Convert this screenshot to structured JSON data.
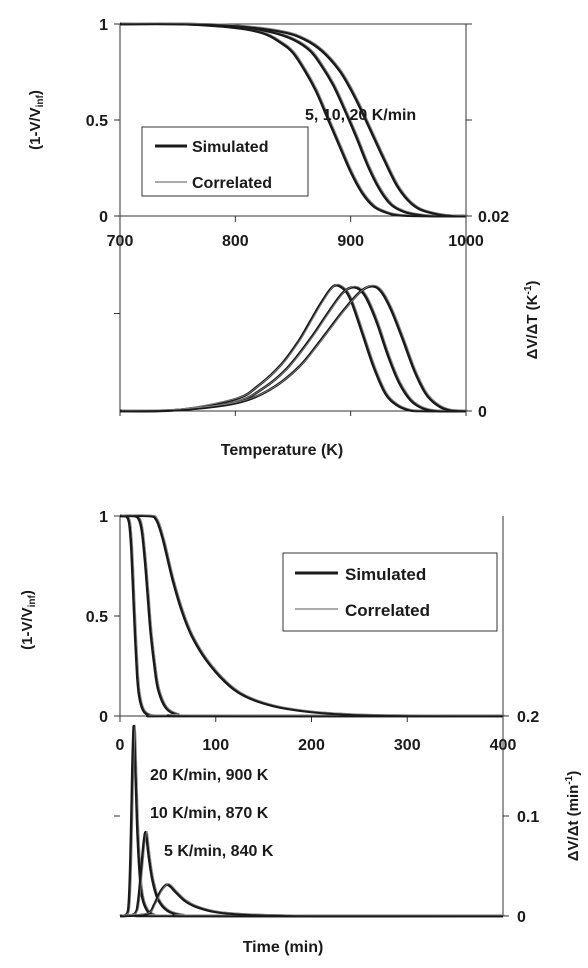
{
  "chart_data": [
    {
      "type": "line",
      "ylabel": "(1-V/V",
      "ylabel_sub": "inf",
      "ylabel_close": ")",
      "xlim": [
        700,
        1000
      ],
      "ylim": [
        0,
        1
      ],
      "y_ticks": [
        "0",
        "0.5",
        "1"
      ],
      "x_ticks": [
        "700",
        "800",
        "900",
        "1000"
      ],
      "annotation": "5, 10, 20 K/min",
      "legend_position": "left",
      "legend": [
        {
          "label": "Simulated",
          "style": "thick"
        },
        {
          "label": "Correlated",
          "style": "thin"
        }
      ],
      "series": [
        {
          "rate": "5 K/min",
          "x": [
            700,
            750,
            800,
            825,
            840,
            850,
            860,
            870,
            880,
            890,
            900,
            910,
            920,
            930,
            940,
            960,
            1000
          ],
          "y": [
            1.0,
            1.0,
            0.98,
            0.95,
            0.9,
            0.85,
            0.76,
            0.65,
            0.51,
            0.37,
            0.23,
            0.12,
            0.05,
            0.02,
            0.005,
            0.0,
            0.0
          ]
        },
        {
          "rate": "10 K/min",
          "x": [
            700,
            750,
            800,
            830,
            850,
            865,
            875,
            885,
            895,
            905,
            915,
            925,
            935,
            945,
            955,
            970,
            1000
          ],
          "y": [
            1.0,
            1.0,
            0.99,
            0.96,
            0.92,
            0.86,
            0.78,
            0.68,
            0.55,
            0.41,
            0.26,
            0.14,
            0.06,
            0.025,
            0.01,
            0.0,
            0.0
          ]
        },
        {
          "rate": "20 K/min",
          "x": [
            700,
            750,
            800,
            840,
            860,
            875,
            890,
            900,
            910,
            920,
            930,
            940,
            950,
            960,
            975,
            990,
            1000
          ],
          "y": [
            1.0,
            1.0,
            0.99,
            0.96,
            0.92,
            0.86,
            0.76,
            0.66,
            0.54,
            0.41,
            0.28,
            0.16,
            0.08,
            0.035,
            0.01,
            0.0,
            0.0
          ]
        }
      ]
    },
    {
      "type": "line",
      "xlabel": "Temperature  (K)",
      "ylabel": "ΔV/ΔT (K",
      "ylabel_sup": "-1",
      "ylabel_close": ")",
      "xlim": [
        700,
        1000
      ],
      "ylim": [
        0,
        0.02
      ],
      "y2_ticks": [
        "0",
        "0.02"
      ],
      "series": [
        {
          "rate": "5 K/min",
          "x": [
            700,
            750,
            800,
            820,
            840,
            855,
            865,
            875,
            885,
            893,
            900,
            910,
            920,
            930,
            940,
            950,
            960,
            1000
          ],
          "y": [
            0.0,
            0.0001,
            0.0012,
            0.0026,
            0.0048,
            0.0072,
            0.0092,
            0.0112,
            0.0128,
            0.0126,
            0.0114,
            0.008,
            0.0045,
            0.0018,
            0.0006,
            0.0001,
            0.0,
            0.0
          ]
        },
        {
          "rate": "10 K/min",
          "x": [
            700,
            750,
            800,
            825,
            845,
            865,
            880,
            893,
            903,
            912,
            922,
            932,
            942,
            952,
            962,
            975,
            1000
          ],
          "y": [
            0.0,
            0.0001,
            0.0009,
            0.0024,
            0.0044,
            0.0074,
            0.01,
            0.0121,
            0.0127,
            0.0119,
            0.0093,
            0.0058,
            0.0029,
            0.0011,
            0.0003,
            0.0,
            0.0
          ]
        },
        {
          "rate": "20 K/min",
          "x": [
            700,
            750,
            800,
            830,
            855,
            875,
            893,
            908,
            918,
            926,
            935,
            945,
            955,
            965,
            975,
            985,
            1000
          ],
          "y": [
            0.0,
            0.0001,
            0.0008,
            0.0022,
            0.0045,
            0.0074,
            0.0102,
            0.0122,
            0.0128,
            0.0123,
            0.0104,
            0.0074,
            0.0042,
            0.0018,
            0.0006,
            0.0001,
            0.0
          ]
        }
      ]
    },
    {
      "type": "line",
      "ylabel": "(1-V/V",
      "ylabel_sub": "inf",
      "ylabel_close": ")",
      "xlim": [
        0,
        400
      ],
      "ylim": [
        0,
        1
      ],
      "y_ticks": [
        "0",
        "0.5",
        "1"
      ],
      "x_ticks": [
        "0",
        "100",
        "200",
        "300",
        "400"
      ],
      "legend_position": "right",
      "legend": [
        {
          "label": "Simulated",
          "style": "thick"
        },
        {
          "label": "Correlated",
          "style": "thin"
        }
      ],
      "series": [
        {
          "rate": "20 K/min",
          "x": [
            0,
            5,
            8,
            10,
            12,
            14,
            16,
            18,
            20,
            24,
            30,
            40,
            60,
            400
          ],
          "y": [
            1.0,
            1.0,
            0.99,
            0.95,
            0.82,
            0.6,
            0.38,
            0.2,
            0.1,
            0.03,
            0.005,
            0.0,
            0.0,
            0.0
          ]
        },
        {
          "rate": "10 K/min",
          "x": [
            0,
            15,
            20,
            23,
            26,
            29,
            32,
            36,
            40,
            48,
            60,
            80,
            400
          ],
          "y": [
            1.0,
            1.0,
            0.98,
            0.92,
            0.78,
            0.6,
            0.42,
            0.25,
            0.13,
            0.04,
            0.008,
            0.0,
            0.0
          ]
        },
        {
          "rate": "5 K/min",
          "x": [
            0,
            30,
            38,
            45,
            55,
            65,
            75,
            90,
            110,
            130,
            160,
            200,
            250,
            300,
            400
          ],
          "y": [
            1.0,
            1.0,
            0.98,
            0.88,
            0.68,
            0.52,
            0.4,
            0.28,
            0.17,
            0.1,
            0.05,
            0.02,
            0.005,
            0.001,
            0.0
          ]
        }
      ]
    },
    {
      "type": "line",
      "xlabel": "Time  (min)",
      "ylabel": "ΔV/Δt (min",
      "ylabel_sup": "-1",
      "ylabel_close": ")",
      "xlim": [
        0,
        400
      ],
      "ylim": [
        0,
        0.2
      ],
      "y2_ticks": [
        "0",
        "0.1",
        "0.2"
      ],
      "annotations": [
        "20 K/min, 900 K",
        "10 K/min, 870 K",
        "5 K/min, 840 K"
      ],
      "series": [
        {
          "rate": "20 K/min",
          "x": [
            0,
            6,
            9,
            11,
            13,
            14.5,
            16,
            18,
            20,
            23,
            28,
            35,
            45,
            400
          ],
          "y": [
            0.0,
            0.001,
            0.01,
            0.06,
            0.15,
            0.19,
            0.15,
            0.09,
            0.05,
            0.02,
            0.006,
            0.001,
            0.0,
            0.0
          ]
        },
        {
          "rate": "10 K/min",
          "x": [
            0,
            15,
            19,
            22,
            25,
            27,
            30,
            34,
            40,
            50,
            65,
            85,
            400
          ],
          "y": [
            0.0,
            0.002,
            0.015,
            0.045,
            0.075,
            0.083,
            0.06,
            0.035,
            0.016,
            0.005,
            0.001,
            0.0,
            0.0
          ]
        },
        {
          "rate": "5 K/min",
          "x": [
            0,
            28,
            36,
            42,
            48,
            52,
            58,
            68,
            80,
            100,
            130,
            170,
            220,
            400
          ],
          "y": [
            0.0,
            0.002,
            0.012,
            0.024,
            0.031,
            0.03,
            0.024,
            0.015,
            0.009,
            0.004,
            0.0015,
            0.0003,
            0.0,
            0.0
          ]
        }
      ]
    }
  ]
}
